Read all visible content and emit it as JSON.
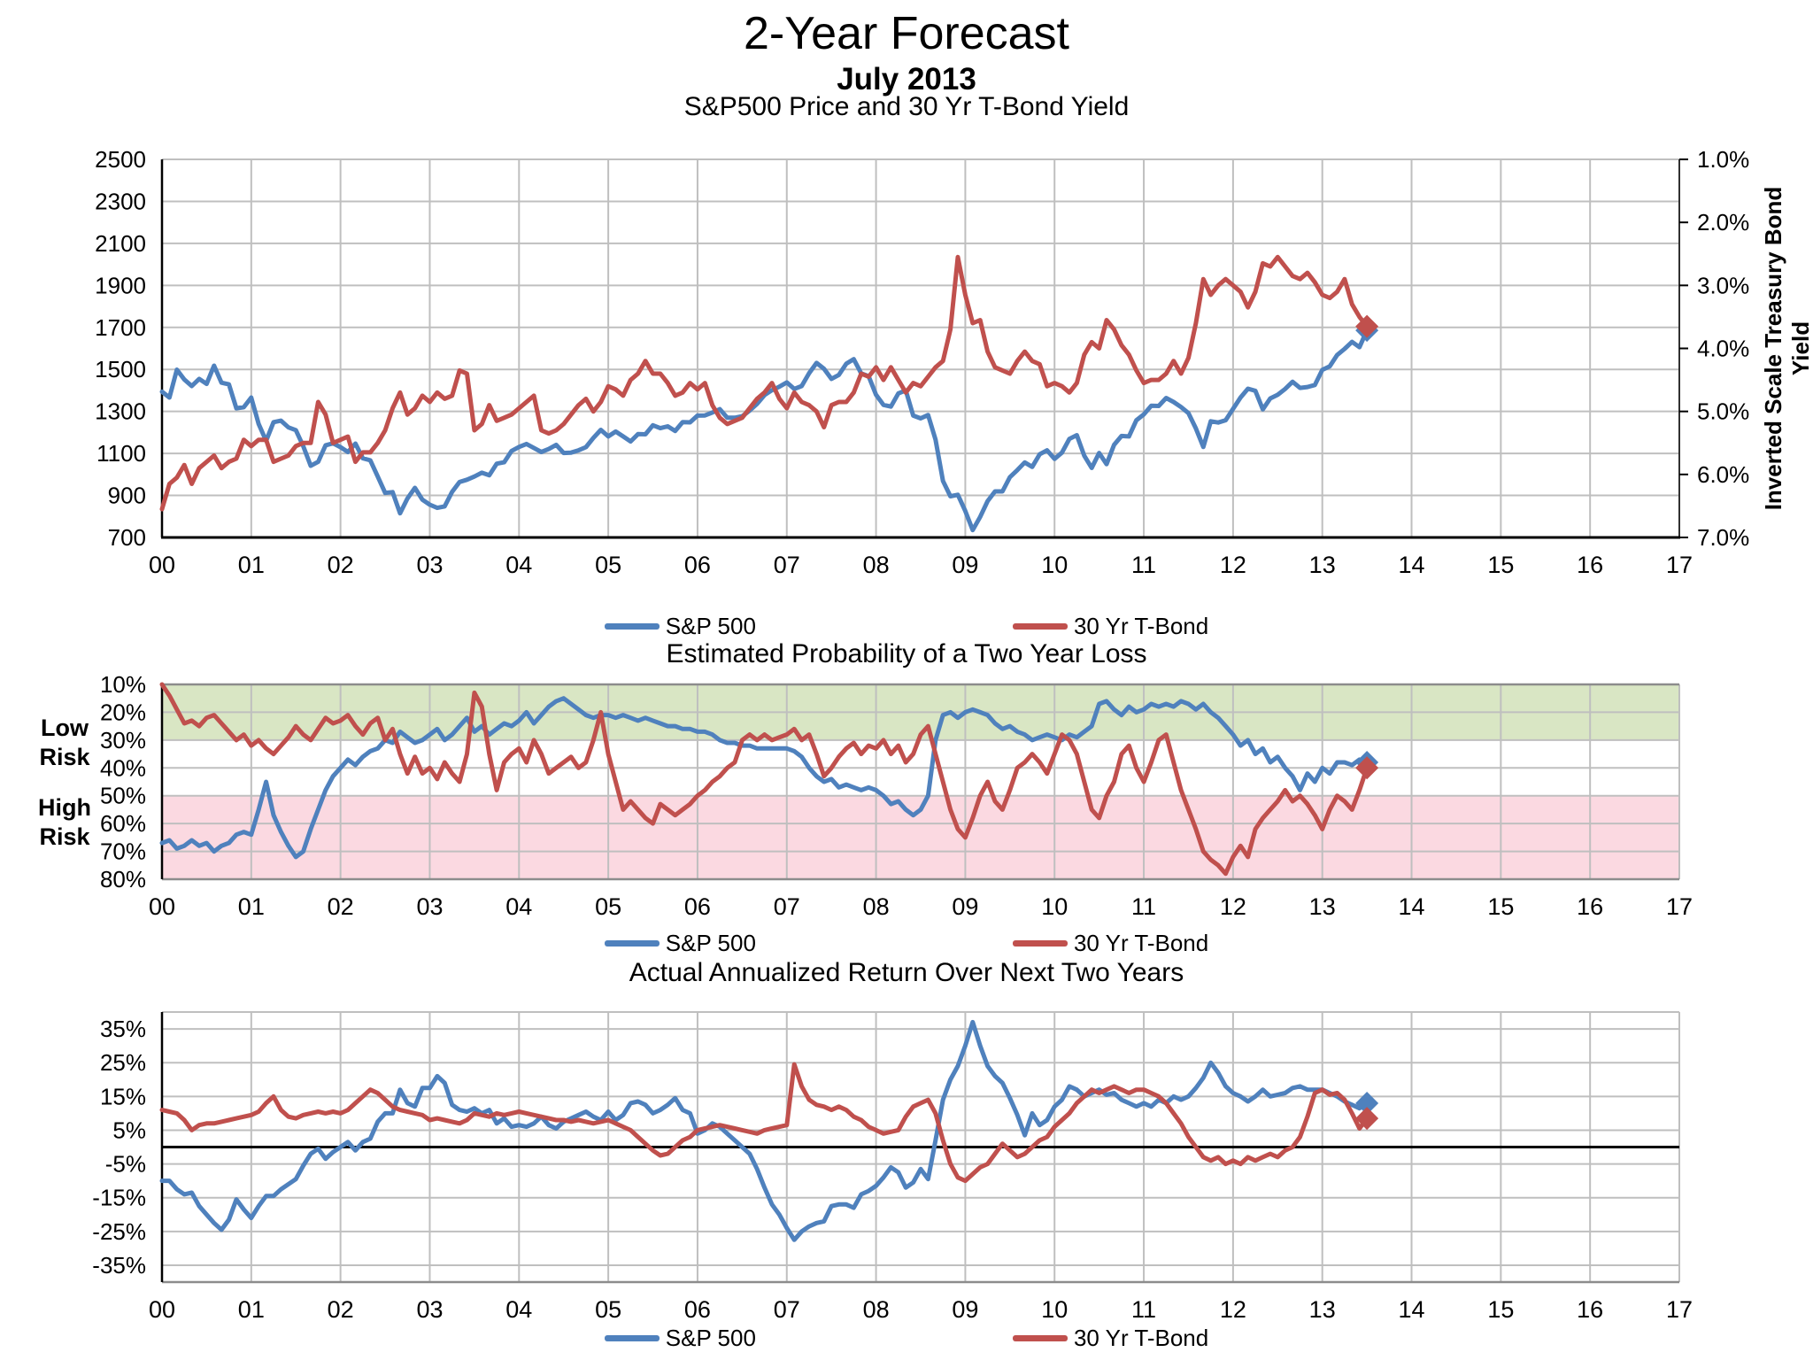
{
  "page": {
    "title": "2-Year Forecast",
    "subtitle": "July 2013",
    "background": "#FFFFFF"
  },
  "colors": {
    "sp500": "#4F81BD",
    "tbond": "#C0504D",
    "gridline": "#BFBFBF",
    "band_edge": "#8C8C8C",
    "axis": "#000000",
    "low_risk_band": "#D9E6C4",
    "high_risk_band": "#FBD9E1"
  },
  "x_axis": {
    "tick_labels": [
      "00",
      "01",
      "02",
      "03",
      "04",
      "05",
      "06",
      "07",
      "08",
      "09",
      "10",
      "11",
      "12",
      "13",
      "14",
      "15",
      "16",
      "17"
    ],
    "range_years": [
      0,
      17
    ],
    "data_start": "Jan 2000",
    "data_end": "Jul 2013",
    "data_end_x": 13.5
  },
  "risk_labels": {
    "low": [
      "Low",
      "Risk"
    ],
    "high": [
      "High",
      "Risk"
    ]
  },
  "chart_data": [
    {
      "type": "line",
      "title": "S&P500 Price and 30 Yr T-Bond Yield",
      "x_start_year": 2000,
      "x_step_months": 1,
      "y_left": {
        "ticks": [
          2500,
          2300,
          2100,
          1900,
          1700,
          1500,
          1300,
          1100,
          900,
          700
        ],
        "range": [
          700,
          2500
        ],
        "format": "int"
      },
      "y_right": {
        "label": "Inverted Scale Treasury Bond Yield",
        "ticks": [
          1,
          2,
          3,
          4,
          5,
          6,
          7
        ],
        "range": [
          1,
          7
        ],
        "inverted": true,
        "format": "pct1"
      },
      "end_marker": "diamond",
      "series": [
        {
          "name": "S&P 500",
          "axis": "left",
          "color_key": "sp500",
          "values": [
            1394,
            1366,
            1499,
            1452,
            1421,
            1455,
            1431,
            1518,
            1437,
            1429,
            1315,
            1320,
            1366,
            1240,
            1160,
            1249,
            1256,
            1224,
            1211,
            1134,
            1041,
            1060,
            1139,
            1148,
            1130,
            1107,
            1147,
            1077,
            1067,
            990,
            912,
            916,
            815,
            886,
            936,
            880,
            856,
            841,
            848,
            917,
            964,
            975,
            990,
            1008,
            996,
            1051,
            1058,
            1112,
            1131,
            1145,
            1126,
            1107,
            1121,
            1141,
            1102,
            1104,
            1115,
            1130,
            1174,
            1212,
            1181,
            1204,
            1181,
            1157,
            1192,
            1191,
            1234,
            1220,
            1229,
            1207,
            1249,
            1248,
            1280,
            1281,
            1295,
            1311,
            1270,
            1270,
            1277,
            1304,
            1336,
            1378,
            1401,
            1418,
            1438,
            1407,
            1421,
            1482,
            1531,
            1503,
            1455,
            1474,
            1527,
            1549,
            1481,
            1468,
            1379,
            1331,
            1323,
            1386,
            1400,
            1280,
            1267,
            1283,
            1166,
            969,
            896,
            903,
            826,
            735,
            798,
            873,
            919,
            919,
            987,
            1021,
            1057,
            1036,
            1096,
            1115,
            1074,
            1104,
            1169,
            1187,
            1089,
            1031,
            1102,
            1049,
            1141,
            1183,
            1181,
            1258,
            1286,
            1327,
            1326,
            1364,
            1345,
            1321,
            1292,
            1219,
            1131,
            1253,
            1247,
            1258,
            1312,
            1366,
            1408,
            1398,
            1310,
            1362,
            1379,
            1407,
            1441,
            1412,
            1416,
            1426,
            1498,
            1515,
            1569,
            1598,
            1631,
            1606,
            1686
          ]
        },
        {
          "name": "30 Yr T-Bond",
          "axis": "right",
          "color_key": "tbond",
          "values": [
            6.55,
            6.15,
            6.05,
            5.85,
            6.15,
            5.9,
            5.8,
            5.7,
            5.9,
            5.8,
            5.75,
            5.45,
            5.55,
            5.45,
            5.45,
            5.8,
            5.75,
            5.7,
            5.55,
            5.5,
            5.5,
            4.85,
            5.05,
            5.5,
            5.45,
            5.4,
            5.8,
            5.65,
            5.65,
            5.5,
            5.3,
            4.95,
            4.7,
            5.05,
            4.95,
            4.75,
            4.85,
            4.7,
            4.8,
            4.75,
            4.35,
            4.4,
            5.3,
            5.2,
            4.9,
            5.15,
            5.1,
            5.05,
            4.95,
            4.85,
            4.75,
            5.3,
            5.35,
            5.3,
            5.2,
            5.05,
            4.9,
            4.8,
            5.0,
            4.85,
            4.6,
            4.65,
            4.75,
            4.5,
            4.4,
            4.2,
            4.4,
            4.4,
            4.55,
            4.75,
            4.7,
            4.55,
            4.65,
            4.55,
            4.9,
            5.1,
            5.2,
            5.15,
            5.1,
            4.95,
            4.8,
            4.7,
            4.55,
            4.8,
            4.95,
            4.7,
            4.85,
            4.9,
            5.0,
            5.25,
            4.9,
            4.85,
            4.85,
            4.7,
            4.4,
            4.45,
            4.3,
            4.5,
            4.3,
            4.5,
            4.7,
            4.55,
            4.6,
            4.45,
            4.3,
            4.2,
            3.7,
            2.55,
            3.15,
            3.6,
            3.55,
            4.05,
            4.3,
            4.35,
            4.4,
            4.2,
            4.05,
            4.2,
            4.25,
            4.6,
            4.55,
            4.6,
            4.7,
            4.55,
            4.1,
            3.9,
            4.0,
            3.55,
            3.7,
            3.95,
            4.1,
            4.35,
            4.55,
            4.5,
            4.5,
            4.4,
            4.2,
            4.4,
            4.15,
            3.6,
            2.9,
            3.15,
            3.0,
            2.9,
            3.0,
            3.1,
            3.35,
            3.1,
            2.65,
            2.7,
            2.55,
            2.7,
            2.85,
            2.9,
            2.8,
            2.95,
            3.15,
            3.2,
            3.1,
            2.9,
            3.3,
            3.5,
            3.65
          ]
        }
      ]
    },
    {
      "type": "line",
      "title": "Estimated Probability of a Two Year Loss",
      "x_start_year": 2000,
      "x_step_months": 1,
      "y": {
        "ticks": [
          10,
          20,
          30,
          40,
          50,
          60,
          70,
          80
        ],
        "range": [
          10,
          80
        ],
        "increases_downward": true,
        "format": "pct"
      },
      "bands": [
        {
          "label": "Low Risk",
          "from": 10,
          "to": 30,
          "color_key": "low_risk_band"
        },
        {
          "label": "High Risk",
          "from": 50,
          "to": 80,
          "color_key": "high_risk_band"
        }
      ],
      "end_marker": "diamond",
      "series": [
        {
          "name": "S&P 500",
          "color_key": "sp500",
          "values": [
            67,
            66,
            69,
            68,
            66,
            68,
            67,
            70,
            68,
            67,
            64,
            63,
            64,
            55,
            45,
            57,
            63,
            68,
            72,
            70,
            62,
            55,
            48,
            43,
            40,
            37,
            39,
            36,
            34,
            33,
            30,
            31,
            27,
            29,
            31,
            30,
            28,
            26,
            30,
            28,
            25,
            22,
            27,
            25,
            28,
            26,
            24,
            25,
            23,
            20,
            24,
            21,
            18,
            16,
            15,
            17,
            19,
            21,
            22,
            21,
            21,
            22,
            21,
            22,
            23,
            22,
            23,
            24,
            25,
            25,
            26,
            26,
            27,
            27,
            28,
            30,
            31,
            31,
            32,
            32,
            33,
            33,
            33,
            33,
            33,
            34,
            36,
            40,
            43,
            45,
            44,
            47,
            46,
            47,
            48,
            47,
            48,
            50,
            53,
            52,
            55,
            57,
            55,
            50,
            30,
            21,
            20,
            22,
            20,
            19,
            20,
            21,
            24,
            26,
            25,
            27,
            28,
            30,
            29,
            28,
            29,
            30,
            28,
            29,
            27,
            25,
            17,
            16,
            19,
            21,
            18,
            20,
            19,
            17,
            18,
            17,
            18,
            16,
            17,
            19,
            17,
            20,
            22,
            25,
            28,
            32,
            30,
            35,
            33,
            38,
            36,
            40,
            43,
            48,
            42,
            45,
            40,
            42,
            38,
            38,
            39,
            37,
            38
          ]
        },
        {
          "name": "30 Yr T-Bond",
          "color_key": "tbond",
          "values": [
            10,
            14,
            19,
            24,
            23,
            25,
            22,
            21,
            24,
            27,
            30,
            28,
            32,
            30,
            33,
            35,
            32,
            29,
            25,
            28,
            30,
            26,
            22,
            24,
            23,
            21,
            25,
            28,
            24,
            22,
            30,
            26,
            35,
            42,
            36,
            42,
            40,
            44,
            38,
            42,
            45,
            35,
            13,
            18,
            35,
            48,
            38,
            35,
            33,
            38,
            30,
            35,
            42,
            40,
            38,
            36,
            40,
            38,
            30,
            20,
            35,
            45,
            55,
            52,
            55,
            58,
            60,
            53,
            55,
            57,
            55,
            53,
            50,
            48,
            45,
            43,
            40,
            38,
            30,
            28,
            30,
            28,
            30,
            29,
            28,
            26,
            30,
            28,
            35,
            43,
            40,
            36,
            33,
            31,
            35,
            32,
            33,
            30,
            35,
            32,
            38,
            35,
            28,
            25,
            35,
            45,
            55,
            62,
            65,
            58,
            50,
            45,
            52,
            55,
            48,
            40,
            38,
            35,
            38,
            42,
            35,
            28,
            30,
            35,
            45,
            55,
            58,
            50,
            45,
            35,
            32,
            40,
            45,
            38,
            30,
            28,
            38,
            48,
            55,
            62,
            70,
            73,
            75,
            78,
            72,
            68,
            72,
            62,
            58,
            55,
            52,
            48,
            52,
            50,
            53,
            57,
            62,
            55,
            50,
            52,
            55,
            48,
            40
          ]
        }
      ]
    },
    {
      "type": "line",
      "title": "Actual Annualized Return Over Next Two Years",
      "x_start_year": 2000,
      "x_step_months": 1,
      "y": {
        "ticks": [
          35,
          25,
          15,
          5,
          -5,
          -15,
          -25,
          -35
        ],
        "range": [
          -40,
          40
        ],
        "format": "pct",
        "zero_line": true
      },
      "end_marker": "diamond",
      "series": [
        {
          "name": "S&P 500",
          "color_key": "sp500",
          "values": [
            -10,
            -10,
            -12.5,
            -14,
            -13.5,
            -17.5,
            -20,
            -22.5,
            -24.5,
            -21.5,
            -15.5,
            -18.5,
            -21,
            -17.5,
            -14.5,
            -14.5,
            -12.5,
            -11,
            -9.5,
            -5.5,
            -2,
            -0.5,
            -3.5,
            -1.5,
            0,
            1.5,
            -1,
            1.5,
            2.5,
            7.5,
            10,
            10,
            17,
            13,
            12,
            17.5,
            17.5,
            21,
            19,
            12.5,
            11,
            10.5,
            11.5,
            10,
            11,
            7,
            8.5,
            6,
            6.5,
            6,
            7,
            9,
            6.5,
            5.5,
            7.5,
            8.5,
            9.5,
            10.5,
            9,
            8,
            10.5,
            8,
            9.5,
            13,
            13.5,
            12.5,
            10,
            11,
            12.5,
            14.5,
            11,
            10,
            4,
            5,
            7,
            6,
            4,
            2,
            0,
            -2,
            -6.5,
            -12,
            -17,
            -20,
            -24,
            -27.5,
            -25,
            -23.5,
            -22.5,
            -22,
            -17.5,
            -17,
            -17,
            -18,
            -14,
            -13,
            -11.5,
            -9,
            -6,
            -7.5,
            -12,
            -10.5,
            -6.5,
            -9.5,
            2,
            14,
            20,
            24,
            30,
            37,
            30,
            24,
            21,
            19,
            14.5,
            9.5,
            3.5,
            10,
            6.5,
            8,
            12,
            14,
            18,
            17,
            15,
            16,
            17,
            15.5,
            16,
            14,
            13,
            12,
            13,
            12,
            14,
            13,
            15,
            14,
            15,
            17.5,
            20.5,
            25,
            22,
            18,
            16,
            15,
            13.5,
            15,
            17,
            15,
            15.5,
            16,
            17.5,
            18,
            17,
            17,
            17,
            16,
            15,
            13.5,
            12.5,
            11.5,
            13
          ]
        },
        {
          "name": "30 Yr T-Bond",
          "color_key": "tbond",
          "values": [
            11,
            10.5,
            10,
            8,
            5,
            6.5,
            7,
            7,
            7.5,
            8,
            8.5,
            9,
            9.5,
            10.5,
            13,
            15,
            11,
            9,
            8.5,
            9.5,
            10,
            10.5,
            10,
            10.5,
            10,
            11,
            13,
            15,
            17,
            16,
            14,
            12,
            11,
            10.5,
            10,
            9.5,
            8,
            8.5,
            8,
            7.5,
            7,
            8,
            10,
            9.5,
            9,
            10,
            9.5,
            10,
            10.5,
            10,
            9.5,
            9,
            8.5,
            8,
            8,
            7.5,
            8,
            7.5,
            7,
            7.5,
            8,
            7,
            6,
            5,
            3,
            1,
            -1,
            -2.5,
            -2,
            0,
            2,
            3,
            5,
            5.5,
            6,
            6.5,
            6,
            5.5,
            5,
            4.5,
            4,
            5,
            5.5,
            6,
            6.5,
            24.5,
            18,
            14,
            12.5,
            12,
            11,
            12,
            11,
            9,
            8,
            6,
            5,
            4,
            4.5,
            5,
            9,
            12,
            13,
            14,
            10,
            2,
            -5,
            -9,
            -10,
            -8,
            -6,
            -5,
            -2,
            1,
            -1,
            -3,
            -2,
            0,
            2,
            3,
            6,
            8,
            10,
            13,
            15,
            17,
            16,
            17,
            18,
            17,
            16,
            17,
            17,
            16,
            15,
            13,
            10,
            7,
            3,
            0,
            -3,
            -4,
            -3,
            -5,
            -4,
            -5,
            -3,
            -4,
            -3,
            -2,
            -3,
            -1,
            0,
            3,
            9,
            16,
            17,
            15.5,
            16,
            14,
            10,
            5.5,
            8.5
          ]
        }
      ]
    }
  ]
}
